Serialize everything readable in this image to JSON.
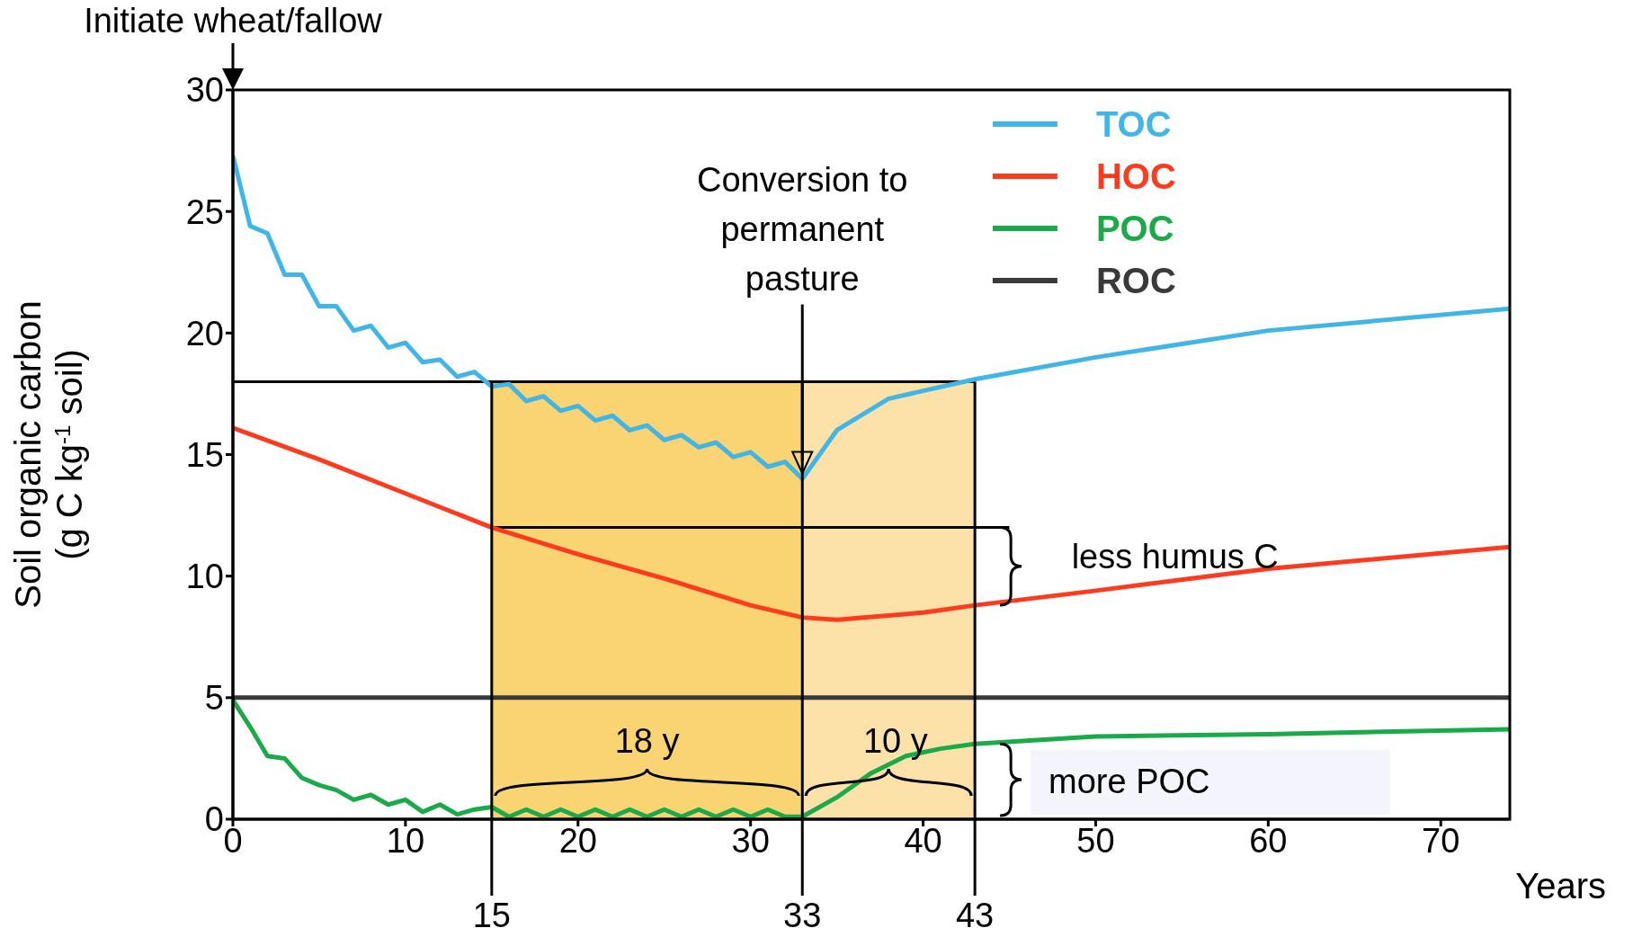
{
  "chart_data": {
    "type": "line",
    "xlabel": "Years",
    "ylabel": "Soil organic carbon (g C kg$^{-1}$ soil)",
    "xlim": [
      0,
      74
    ],
    "ylim": [
      0,
      30
    ],
    "xticks": [
      0,
      10,
      20,
      30,
      40,
      50,
      60,
      70
    ],
    "yticks": [
      0,
      5,
      10,
      15,
      20,
      25,
      30
    ],
    "legend": "top right",
    "series": [
      {
        "name": "TOC",
        "color": "#41b6e6",
        "x": [
          0,
          1,
          2,
          3,
          4,
          5,
          6,
          7,
          8,
          9,
          10,
          11,
          12,
          13,
          14,
          15,
          16,
          17,
          18,
          19,
          20,
          21,
          22,
          23,
          24,
          25,
          26,
          27,
          28,
          29,
          30,
          31,
          32,
          33,
          35,
          38,
          43,
          50,
          60,
          74
        ],
        "values": [
          27.3,
          24.4,
          24.1,
          22.4,
          22.4,
          21.1,
          21.1,
          20.1,
          20.3,
          19.4,
          19.6,
          18.8,
          18.9,
          18.2,
          18.4,
          17.8,
          17.9,
          17.2,
          17.4,
          16.8,
          17.0,
          16.4,
          16.6,
          16.0,
          16.2,
          15.6,
          15.8,
          15.3,
          15.5,
          14.9,
          15.1,
          14.5,
          14.7,
          14.0,
          16.0,
          17.3,
          18.1,
          19.0,
          20.1,
          21.0
        ]
      },
      {
        "name": "HOC",
        "color": "#ff3b1f",
        "x": [
          0,
          5,
          10,
          15,
          20,
          25,
          30,
          33,
          35,
          40,
          43,
          50,
          60,
          74
        ],
        "values": [
          16.1,
          14.8,
          13.4,
          12.0,
          10.9,
          9.9,
          8.8,
          8.3,
          8.2,
          8.5,
          8.8,
          9.4,
          10.3,
          11.2
        ]
      },
      {
        "name": "POC",
        "color": "#1aaa4a",
        "x": [
          0,
          1,
          2,
          3,
          4,
          5,
          6,
          7,
          8,
          9,
          10,
          11,
          12,
          13,
          14,
          15,
          16,
          17,
          18,
          19,
          20,
          21,
          22,
          23,
          24,
          25,
          26,
          27,
          28,
          29,
          30,
          31,
          32,
          33,
          35,
          37,
          39,
          41,
          43,
          50,
          60,
          74
        ],
        "values": [
          4.9,
          3.8,
          2.6,
          2.5,
          1.7,
          1.4,
          1.2,
          0.8,
          1.0,
          0.6,
          0.8,
          0.3,
          0.6,
          0.2,
          0.4,
          0.5,
          0.1,
          0.4,
          0.1,
          0.4,
          0.1,
          0.4,
          0.1,
          0.4,
          0.1,
          0.4,
          0.1,
          0.4,
          0.1,
          0.4,
          0.1,
          0.4,
          0.1,
          0.1,
          0.9,
          1.9,
          2.6,
          2.9,
          3.1,
          3.4,
          3.5,
          3.7
        ]
      },
      {
        "name": "ROC",
        "color": "#3a3a3a",
        "x": [
          0,
          74
        ],
        "values": [
          5,
          5
        ]
      }
    ],
    "bands": [
      {
        "axis": "x",
        "from": 15,
        "to": 33,
        "color": "#f9cd5a"
      },
      {
        "axis": "x",
        "from": 33,
        "to": 43,
        "color": "#fbdc9a"
      }
    ],
    "ref_lines": [
      {
        "axis": "x",
        "value": 15,
        "label": "15"
      },
      {
        "axis": "x",
        "value": 33,
        "label": "33"
      },
      {
        "axis": "x",
        "value": 43,
        "label": "43"
      },
      {
        "axis": "y",
        "value": 18
      },
      {
        "axis": "y",
        "value": 12
      }
    ],
    "annotations": [
      "Initiate wheat/fallow",
      "Conversion to permanent pasture",
      "18 y",
      "10 y",
      "less humus C",
      "more POC"
    ]
  }
}
